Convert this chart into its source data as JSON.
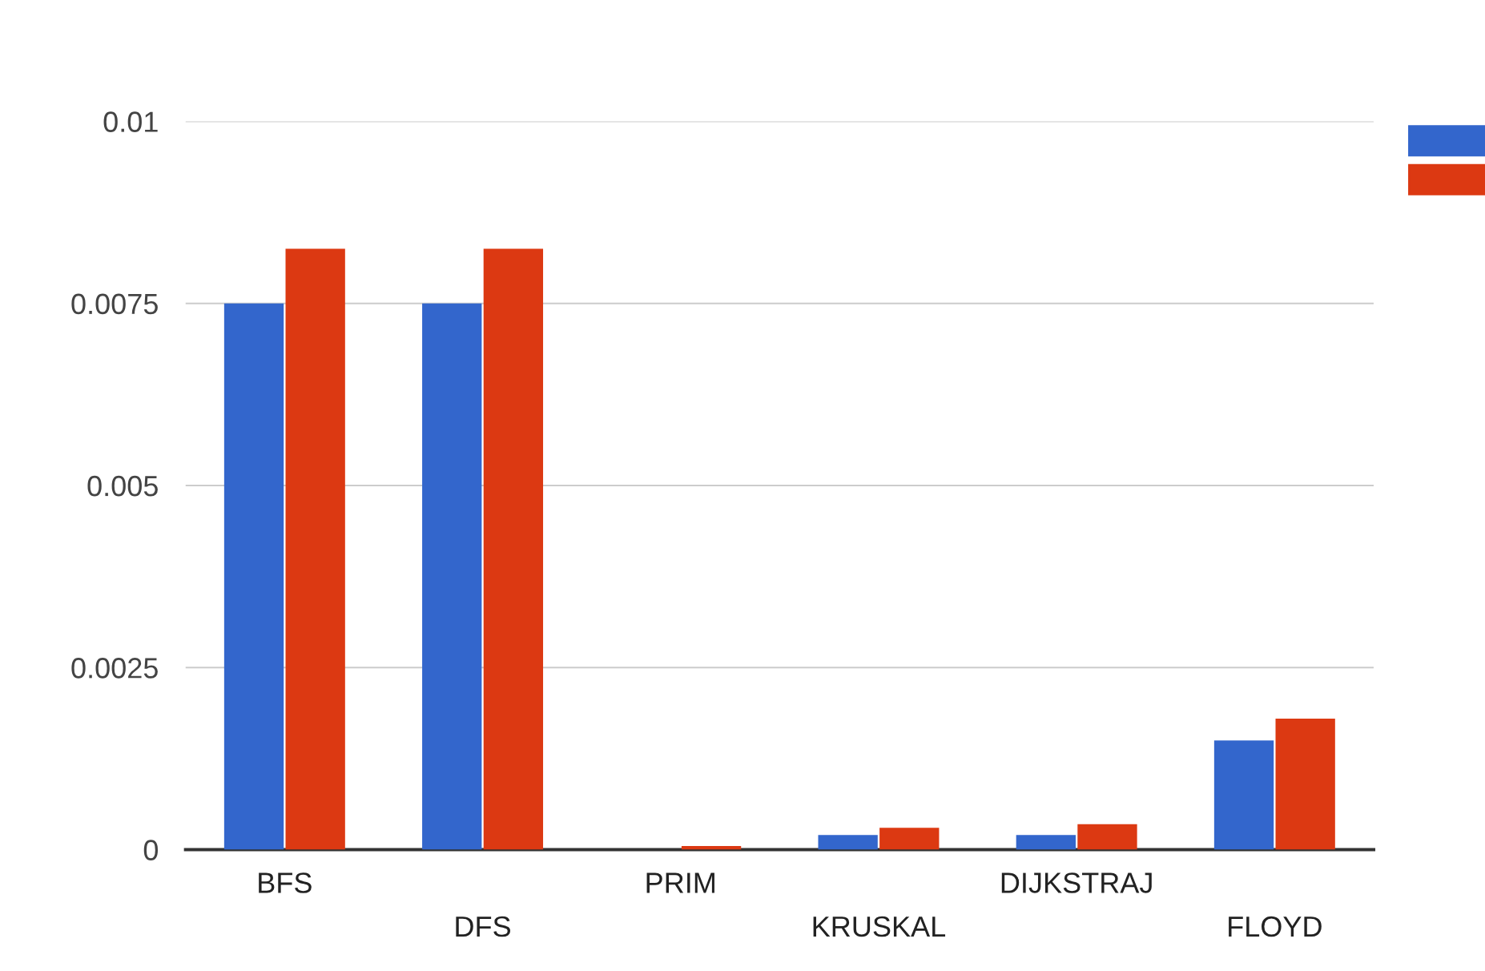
{
  "chart_data": {
    "type": "bar",
    "categories": [
      "BFS",
      "DFS",
      "PRIM",
      "KRUSKAL",
      "DIJKSTRAJ",
      "FLOYD"
    ],
    "series": [
      {
        "color": "#3366cc",
        "values": [
          0.0075,
          0.0075,
          0,
          0.0002,
          0.0002,
          0.0015
        ]
      },
      {
        "color": "#dc3912",
        "values": [
          0.00825,
          0.00825,
          5e-05,
          0.0003,
          0.00035,
          0.0018
        ]
      }
    ],
    "ylim": [
      0,
      0.01
    ],
    "yticks": [
      0,
      0.0025,
      0.005,
      0.0075,
      0.01
    ],
    "grid": "y"
  }
}
